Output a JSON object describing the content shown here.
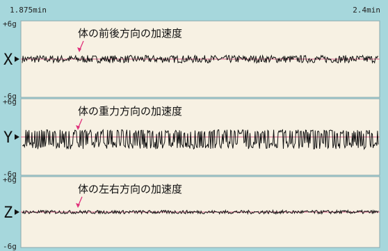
{
  "chart_data": {
    "type": "line",
    "time_range": {
      "start_label": "1.875min",
      "end_label": "2.4min"
    },
    "ylim": [
      -6,
      6
    ],
    "panels": [
      {
        "axis": "X",
        "y_max_label": "+6g",
        "y_min_label": "-6g",
        "annotation": "体の前後方向の加速度",
        "amplitude_g": 0.6,
        "baseline_g": 0
      },
      {
        "axis": "Y",
        "y_max_label": "+6g",
        "y_min_label": "-6g",
        "annotation": "体の重力方向の加速度",
        "amplitude_g": 1.9,
        "baseline_g": 0
      },
      {
        "axis": "Z",
        "y_max_label": "+6g",
        "y_min_label": "-6g",
        "annotation": "体の左右方向の加速度",
        "amplitude_g": 0.3,
        "baseline_g": 0
      }
    ]
  },
  "colors": {
    "background": "#a6d7dc",
    "panel": "#f7f1e3",
    "signal": "#111111",
    "baseline": "#d9608a",
    "arrow": "#e0307a"
  }
}
